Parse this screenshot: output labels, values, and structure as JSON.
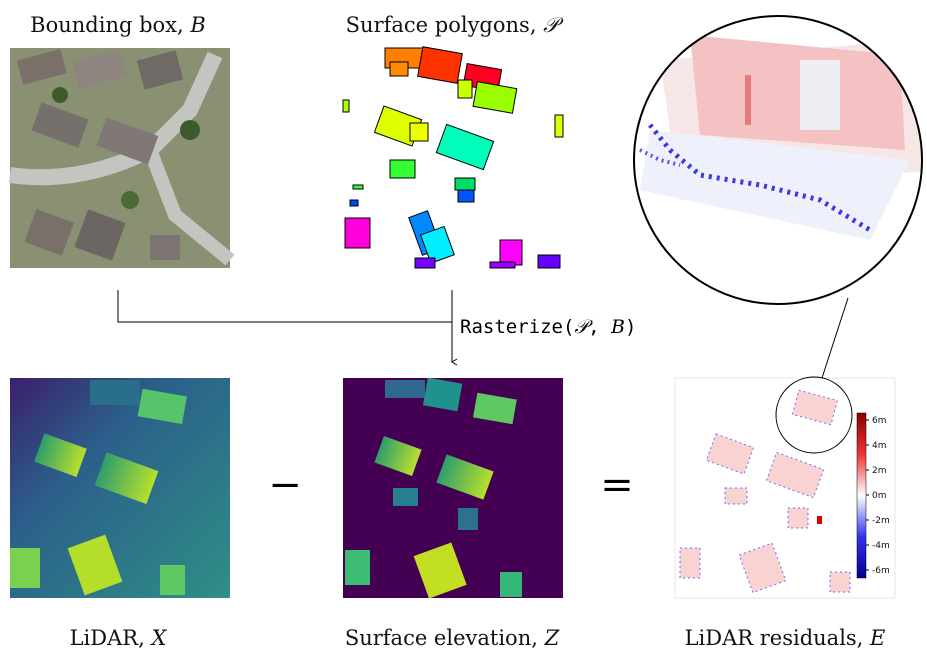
{
  "panels": [
    {
      "label": "Bounding box, ",
      "symbol": "B"
    },
    {
      "label": "Surface polygons, ",
      "symbol": "𝒫"
    },
    {
      "label": "LiDAR, ",
      "symbol": "X"
    },
    {
      "label": "Surface elevation, ",
      "symbol": "Z"
    },
    {
      "label": "LiDAR residuals, ",
      "symbol": "E"
    }
  ],
  "operation": {
    "function": "Rasterize",
    "open": "(",
    "arg1": "𝒫",
    "separator": ", ",
    "arg2": "B",
    "close": ")"
  },
  "operators": {
    "minus": "−",
    "equals": "="
  },
  "colorbar": {
    "ticks": [
      "6m",
      "4m",
      "2m",
      "0m",
      "-2m",
      "-4m",
      "-6m"
    ]
  }
}
